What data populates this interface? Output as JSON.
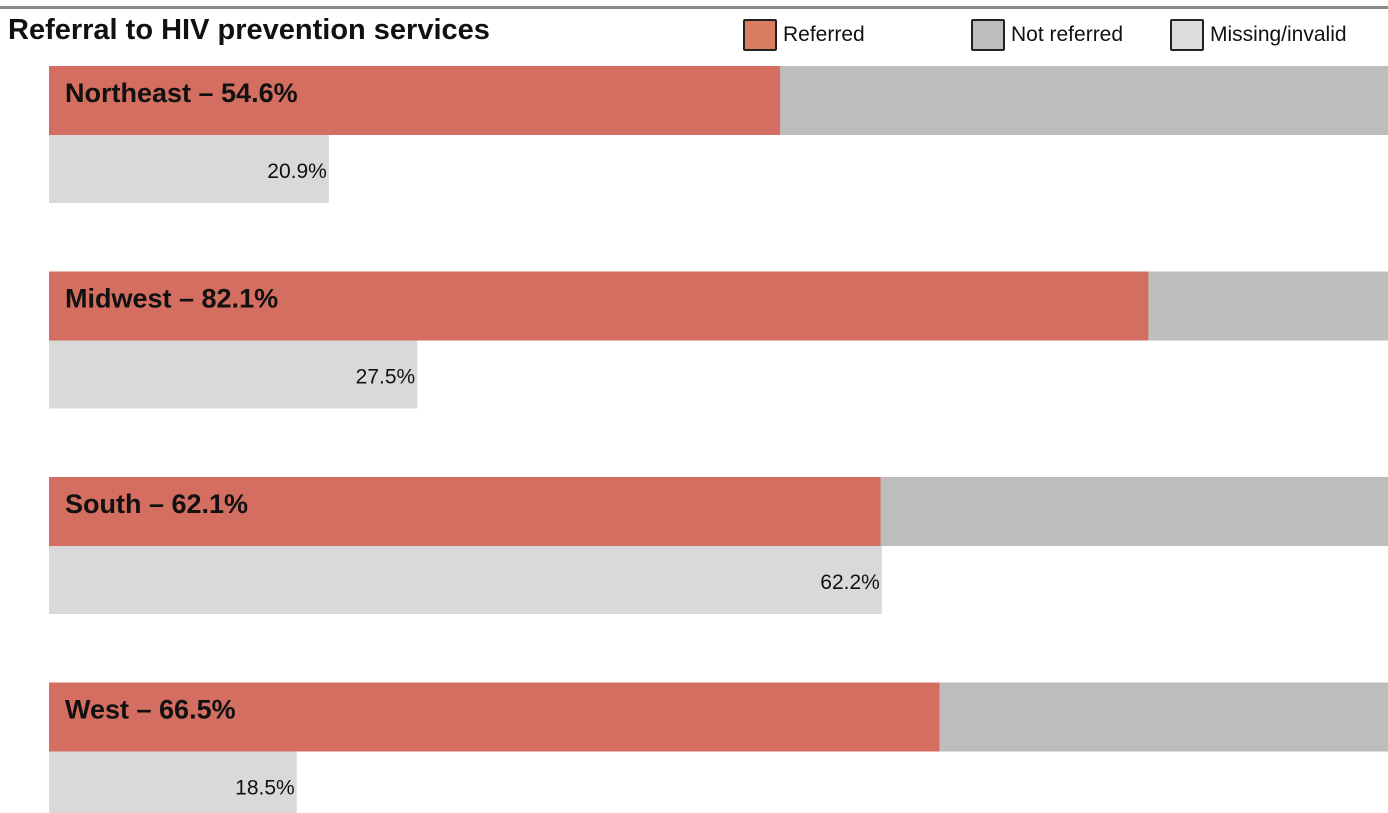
{
  "chart_data": {
    "type": "bar",
    "title": "Referral to HIV prevention services",
    "xlim": [
      0,
      100
    ],
    "legend": [
      {
        "name": "Referred",
        "color": "#d97d62"
      },
      {
        "name": "Not referred",
        "color": "#bdbdbd"
      },
      {
        "name": "Missing/invalid",
        "color": "#dcdcdc"
      }
    ],
    "colors": {
      "referred": "#d36e60",
      "not_referred": "#bdbdbd",
      "missing": "#d9d9d9"
    },
    "legend_position": "top-right",
    "rows": [
      {
        "region": "Northeast",
        "label": "Northeast – 54.6%",
        "referred": 54.6,
        "missing": 20.9,
        "missing_label": "20.9%"
      },
      {
        "region": "Midwest",
        "label": "Midwest – 82.1%",
        "referred": 82.1,
        "missing": 27.5,
        "missing_label": "27.5%"
      },
      {
        "region": "South",
        "label": "South – 62.1%",
        "referred": 62.1,
        "missing": 62.2,
        "missing_label": "62.2%"
      },
      {
        "region": "West",
        "label": "West – 66.5%",
        "referred": 66.5,
        "missing": 18.5,
        "missing_label": "18.5%"
      }
    ]
  }
}
